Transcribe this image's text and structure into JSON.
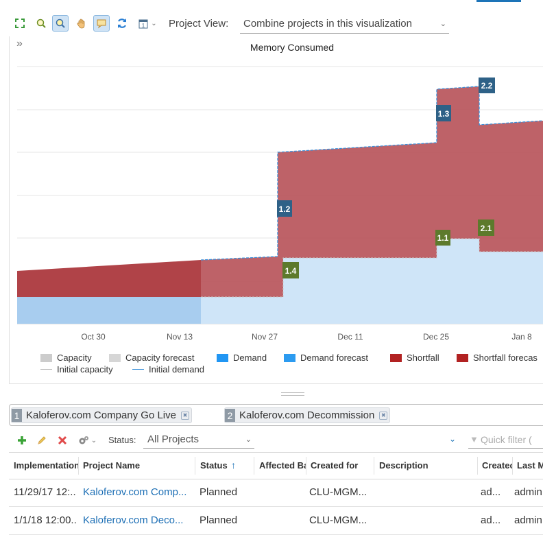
{
  "toolbar": {
    "icons": [
      "zoom-fit-icon",
      "zoom-in-icon",
      "zoom-region-icon",
      "pan-hand-icon",
      "tooltip-toggle-icon",
      "refresh-icon",
      "calendar-icon"
    ],
    "project_view_label": "Project View:",
    "project_view_value": "Combine projects in this visualization"
  },
  "chart": {
    "title": "Memory Consumed",
    "x_ticks": [
      "Oct 30",
      "Nov 13",
      "Nov 27",
      "Dec 11",
      "Dec 25",
      "Jan 8"
    ],
    "markers": {
      "m12": "1.2",
      "m13": "1.3",
      "m22": "2.2",
      "m14": "1.4",
      "m11": "1.1",
      "m21": "2.1"
    }
  },
  "chart_data": {
    "type": "area",
    "title": "Memory Consumed",
    "x_ticks": [
      "Oct 30",
      "Nov 13",
      "Nov 27",
      "Dec 11",
      "Dec 25",
      "Jan 8"
    ],
    "series": [
      {
        "name": "Demand",
        "color": "#b7d5f1"
      },
      {
        "name": "Shortfall",
        "color": "#b22222"
      },
      {
        "name": "Initial demand",
        "color": "#3a8fd9"
      }
    ],
    "markers": [
      {
        "label": "1.2",
        "type": "demand"
      },
      {
        "label": "1.3",
        "type": "demand"
      },
      {
        "label": "2.2",
        "type": "demand"
      },
      {
        "label": "1.4",
        "type": "capacity"
      },
      {
        "label": "1.1",
        "type": "capacity"
      },
      {
        "label": "2.1",
        "type": "capacity"
      }
    ]
  },
  "legend": {
    "capacity": "Capacity",
    "capacity_forecast": "Capacity forecast",
    "demand": "Demand",
    "demand_forecast": "Demand forecast",
    "shortfall": "Shortfall",
    "shortfall_forecast": "Shortfall forecas",
    "initial_capacity": "Initial capacity",
    "initial_demand": "Initial demand"
  },
  "colors": {
    "shortfall": "#b22222",
    "demand": "#2196f3",
    "capacity": "#cccccc",
    "demand_marker": "#2e6187",
    "capacity_marker": "#5d7a2c"
  },
  "projects": [
    {
      "num": "1",
      "name": "Kaloferov.com Company Go Live"
    },
    {
      "num": "2",
      "name": "Kaloferov.com Decommission"
    }
  ],
  "list_toolbar": {
    "status_label": "Status:",
    "status_value": "All Projects",
    "quick_filter_placeholder": "Quick filter ("
  },
  "grid": {
    "columns": [
      "Implementation",
      "Project Name",
      "Status",
      "Affected Ba",
      "Created for",
      "Description",
      "Createc",
      "Last M"
    ],
    "rows": [
      [
        "11/29/17 12:...",
        "Kaloferov.com Comp...",
        "Planned",
        "",
        "CLU-MGM...",
        "",
        "ad...",
        "admin"
      ],
      [
        "1/1/18 12:00...",
        "Kaloferov.com Deco...",
        "Planned",
        "",
        "CLU-MGM...",
        "",
        "ad...",
        "admin"
      ]
    ]
  }
}
